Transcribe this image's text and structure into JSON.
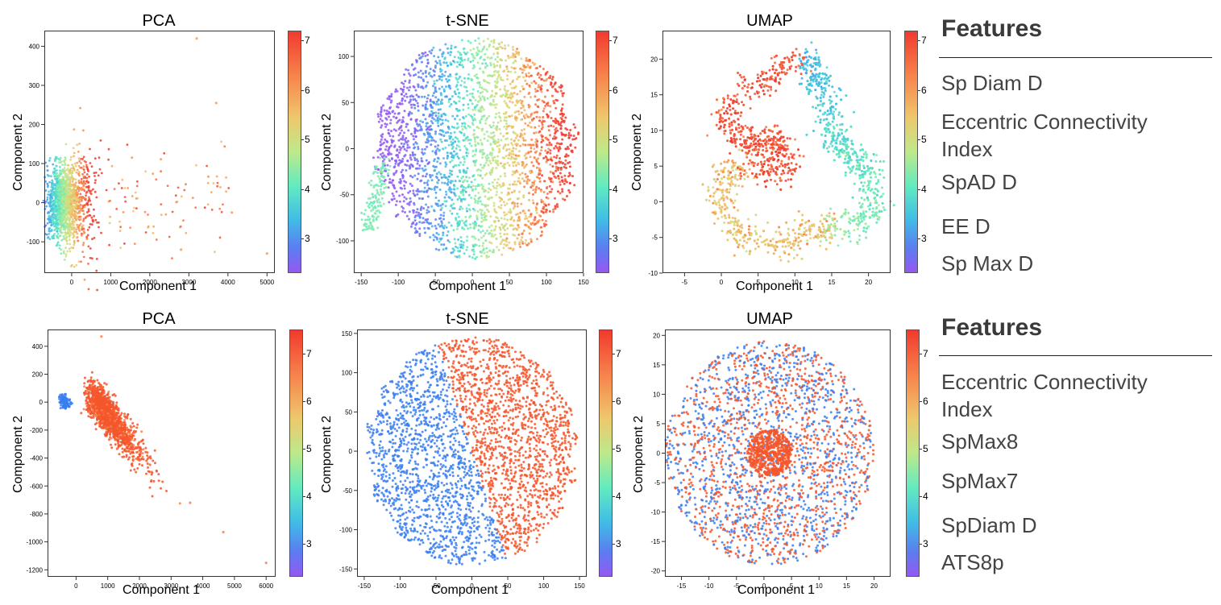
{
  "colors": {
    "colormap": [
      "#9558f2",
      "#5b7df0",
      "#40bde6",
      "#63ebbf",
      "#bde98a",
      "#eec86d",
      "#f7824a",
      "#f03a2e"
    ],
    "blue_class": "#3a7ff0",
    "red_class": "#f4562c"
  },
  "rows": [
    {
      "panels": [
        {
          "title": "PCA",
          "xlabel": "Component 1",
          "ylabel": "Component 2",
          "chart_data": {
            "type": "scatter",
            "xlim": [
              -700,
              5200
            ],
            "ylim": [
              -180,
              440
            ],
            "xticks": [
              0,
              1000,
              2000,
              3000,
              4000,
              5000
            ],
            "yticks": [
              -100,
              0,
              100,
              200,
              300,
              400
            ],
            "colorbar": {
              "range": [
                2.3,
                7.2
              ],
              "ticks": [
                3,
                4,
                5,
                6,
                7
              ]
            },
            "outliers": [
              {
                "x": 3200,
                "y": 420
              },
              {
                "x": 3700,
                "y": 255
              },
              {
                "x": 5000,
                "y": -130
              },
              {
                "x": 4100,
                "y": -25
              },
              {
                "x": 2800,
                "y": -120
              }
            ]
          }
        },
        {
          "title": "t-SNE",
          "xlabel": "Component 1",
          "ylabel": "Component 2",
          "chart_data": {
            "type": "scatter",
            "xlim": [
              -160,
              150
            ],
            "ylim": [
              -135,
              128
            ],
            "xticks": [
              -150,
              -100,
              -50,
              0,
              50,
              100,
              150
            ],
            "yticks": [
              -100,
              -50,
              0,
              50,
              100
            ],
            "colorbar": {
              "range": [
                2.3,
                7.2
              ],
              "ticks": [
                3,
                4,
                5,
                6,
                7
              ]
            }
          }
        },
        {
          "title": "UMAP",
          "xlabel": "Component 1",
          "ylabel": "Component 2",
          "chart_data": {
            "type": "scatter",
            "xlim": [
              -8,
              23
            ],
            "ylim": [
              -10,
              24
            ],
            "xticks": [
              -5,
              0,
              5,
              10,
              15,
              20
            ],
            "yticks": [
              -10,
              -5,
              0,
              5,
              10,
              15,
              20
            ],
            "colorbar": {
              "range": [
                2.3,
                7.2
              ],
              "ticks": [
                3,
                4,
                5,
                6,
                7
              ]
            }
          }
        }
      ],
      "features": {
        "title": "Features",
        "items": [
          "Sp Diam D",
          "Eccentric Connectivity Index",
          "SpAD D",
          "EE D",
          "Sp Max D"
        ]
      }
    },
    {
      "panels": [
        {
          "title": "PCA",
          "xlabel": "Component 1",
          "ylabel": "Component 2",
          "chart_data": {
            "type": "scatter",
            "xlim": [
              -900,
              6300
            ],
            "ylim": [
              -1250,
              520
            ],
            "xticks": [
              0,
              1000,
              2000,
              3000,
              4000,
              5000,
              6000
            ],
            "yticks": [
              -1200,
              -1000,
              -800,
              -600,
              -400,
              -200,
              0,
              200,
              400
            ],
            "colorbar": {
              "range": [
                2.3,
                7.5
              ],
              "ticks": [
                3,
                4,
                5,
                6,
                7
              ]
            },
            "outliers": [
              {
                "x": 800,
                "y": 470
              },
              {
                "x": 4650,
                "y": -930
              },
              {
                "x": 6000,
                "y": -1150
              },
              {
                "x": 3600,
                "y": -720
              }
            ]
          }
        },
        {
          "title": "t-SNE",
          "xlabel": "Component 1",
          "ylabel": "Component 2",
          "chart_data": {
            "type": "scatter",
            "xlim": [
              -160,
              160
            ],
            "ylim": [
              -160,
              155
            ],
            "xticks": [
              -150,
              -100,
              -50,
              0,
              50,
              100,
              150
            ],
            "yticks": [
              -150,
              -100,
              -50,
              0,
              50,
              100,
              150
            ],
            "colorbar": {
              "range": [
                2.3,
                7.5
              ],
              "ticks": [
                3,
                4,
                5,
                6,
                7
              ]
            }
          }
        },
        {
          "title": "UMAP",
          "xlabel": "Component 1",
          "ylabel": "Component 2",
          "chart_data": {
            "type": "scatter",
            "xlim": [
              -18,
              23
            ],
            "ylim": [
              -21,
              21
            ],
            "xticks": [
              -15,
              -10,
              -5,
              0,
              5,
              10,
              15,
              20
            ],
            "yticks": [
              -20,
              -15,
              -10,
              -5,
              0,
              5,
              10,
              15,
              20
            ],
            "colorbar": {
              "range": [
                2.3,
                7.5
              ],
              "ticks": [
                3,
                4,
                5,
                6,
                7
              ]
            }
          }
        }
      ],
      "features": {
        "title": "Features",
        "items": [
          "Eccentric Connectivity Index",
          "SpMax8",
          "SpMax7",
          "SpDiam D",
          "ATS8p"
        ]
      }
    }
  ]
}
